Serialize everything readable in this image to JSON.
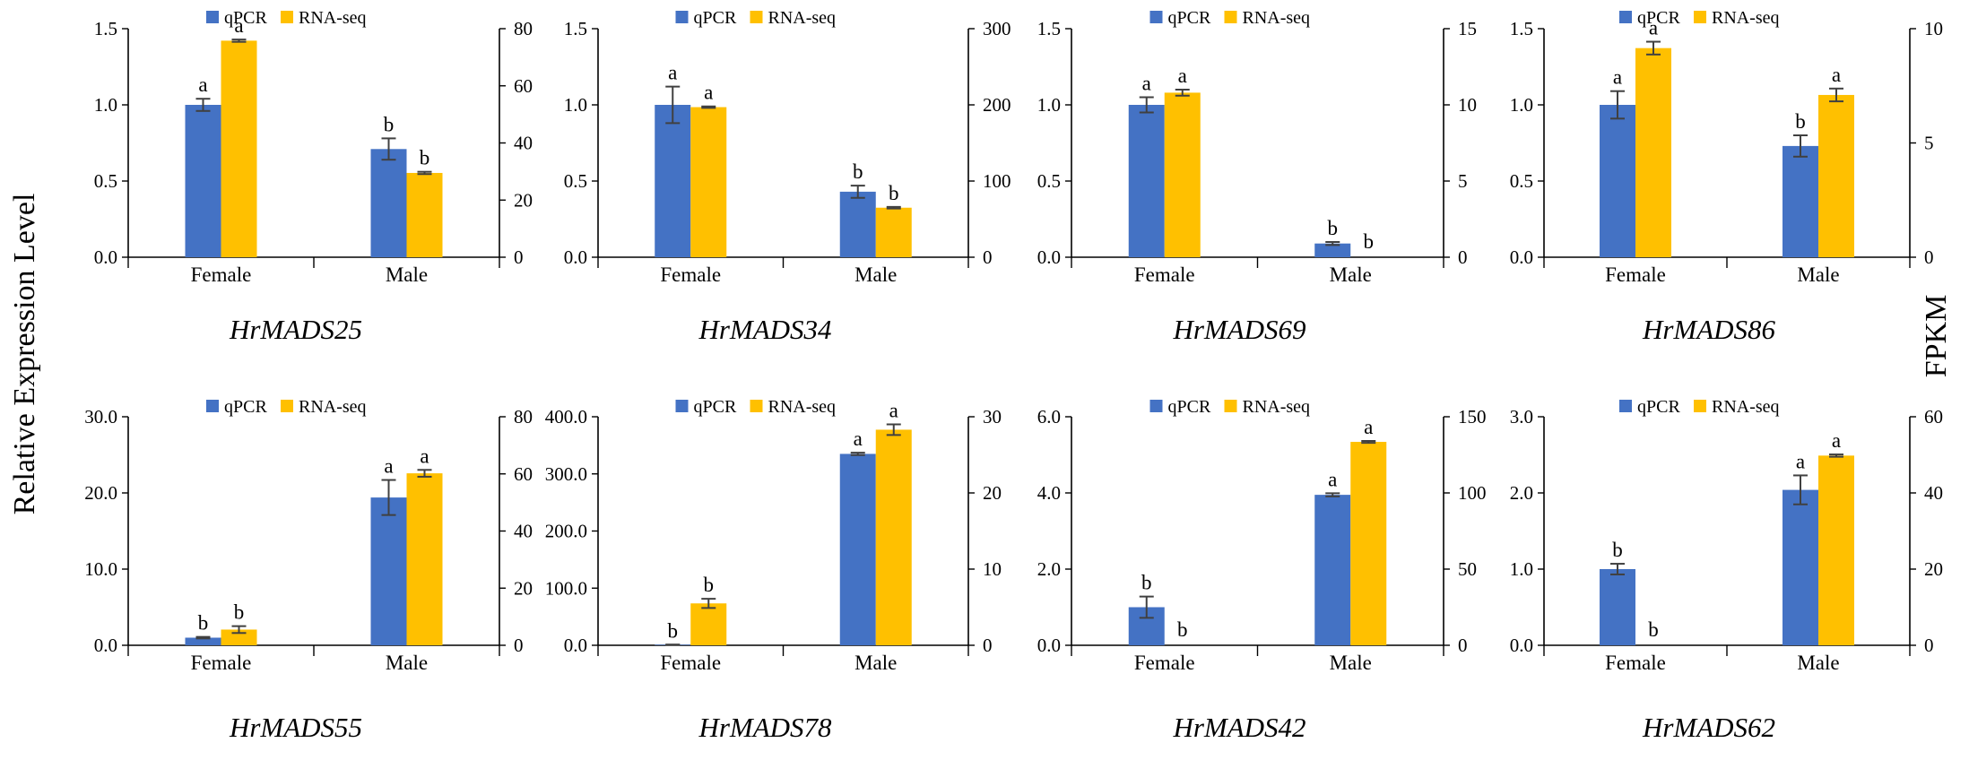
{
  "figure": {
    "left_axis_label": "Relative Expression Level",
    "right_axis_label": "FPKM"
  },
  "colors": {
    "qpcr": "#4472C4",
    "rnaseq": "#FFC000"
  },
  "chart_data": [
    {
      "type": "bar",
      "title": "HrMADS25",
      "categories": [
        "Female",
        "Male"
      ],
      "legend": [
        "qPCR",
        "RNA-seq"
      ],
      "left_axis": {
        "min": 0,
        "max": 1.5,
        "ticks": [
          0,
          0.5,
          1,
          1.5
        ],
        "tick_labels": [
          "0.0",
          "0.5",
          "1.0",
          "1.5"
        ]
      },
      "right_axis": {
        "min": 0,
        "max": 80,
        "ticks": [
          0,
          20,
          40,
          60,
          80
        ],
        "tick_labels": [
          "0",
          "20",
          "40",
          "60",
          "80"
        ]
      },
      "series": [
        {
          "name": "qPCR",
          "axis": "left",
          "values": [
            1.0,
            0.71
          ],
          "errors": [
            0.04,
            0.07
          ],
          "letters": [
            "a",
            "b"
          ]
        },
        {
          "name": "RNA-seq",
          "axis": "right",
          "values": [
            75.8,
            29.5
          ],
          "errors": [
            0.4,
            0.4
          ],
          "letters": [
            "a",
            "b"
          ]
        }
      ]
    },
    {
      "type": "bar",
      "title": "HrMADS34",
      "categories": [
        "Female",
        "Male"
      ],
      "legend": [
        "qPCR",
        "RNA-seq"
      ],
      "left_axis": {
        "min": 0,
        "max": 1.5,
        "ticks": [
          0,
          0.5,
          1,
          1.5
        ],
        "tick_labels": [
          "0.0",
          "0.5",
          "1.0",
          "1.5"
        ]
      },
      "right_axis": {
        "min": 0,
        "max": 300,
        "ticks": [
          0,
          100,
          200,
          300
        ],
        "tick_labels": [
          "0",
          "100",
          "200",
          "300"
        ]
      },
      "series": [
        {
          "name": "qPCR",
          "axis": "left",
          "values": [
            1.0,
            0.43
          ],
          "errors": [
            0.12,
            0.04
          ],
          "letters": [
            "a",
            "b"
          ]
        },
        {
          "name": "RNA-seq",
          "axis": "right",
          "values": [
            197,
            65
          ],
          "errors": [
            1,
            1
          ],
          "letters": [
            "a",
            "b"
          ]
        }
      ]
    },
    {
      "type": "bar",
      "title": "HrMADS69",
      "categories": [
        "Female",
        "Male"
      ],
      "legend": [
        "qPCR",
        "RNA-seq"
      ],
      "left_axis": {
        "min": 0,
        "max": 1.5,
        "ticks": [
          0,
          0.5,
          1,
          1.5
        ],
        "tick_labels": [
          "0.0",
          "0.5",
          "1.0",
          "1.5"
        ]
      },
      "right_axis": {
        "min": 0,
        "max": 15,
        "ticks": [
          0,
          5,
          10,
          15
        ],
        "tick_labels": [
          "0",
          "5",
          "10",
          "15"
        ]
      },
      "series": [
        {
          "name": "qPCR",
          "axis": "left",
          "values": [
            1.0,
            0.09
          ],
          "errors": [
            0.05,
            0.01
          ],
          "letters": [
            "a",
            "b"
          ]
        },
        {
          "name": "RNA-seq",
          "axis": "right",
          "values": [
            10.8,
            0
          ],
          "errors": [
            0.2,
            0
          ],
          "letters": [
            "a",
            "b"
          ]
        }
      ]
    },
    {
      "type": "bar",
      "title": "HrMADS86",
      "categories": [
        "Female",
        "Male"
      ],
      "legend": [
        "qPCR",
        "RNA-seq"
      ],
      "left_axis": {
        "min": 0,
        "max": 1.5,
        "ticks": [
          0,
          0.5,
          1,
          1.5
        ],
        "tick_labels": [
          "0.0",
          "0.5",
          "1.0",
          "1.5"
        ]
      },
      "right_axis": {
        "min": 0,
        "max": 10,
        "ticks": [
          0,
          5,
          10
        ],
        "tick_labels": [
          "0",
          "5",
          "10"
        ]
      },
      "series": [
        {
          "name": "qPCR",
          "axis": "left",
          "values": [
            1.0,
            0.73
          ],
          "errors": [
            0.09,
            0.07
          ],
          "letters": [
            "a",
            "b"
          ]
        },
        {
          "name": "RNA-seq",
          "axis": "right",
          "values": [
            9.15,
            7.1
          ],
          "errors": [
            0.28,
            0.28
          ],
          "letters": [
            "a",
            "a"
          ]
        }
      ]
    },
    {
      "type": "bar",
      "title": "HrMADS55",
      "categories": [
        "Female",
        "Male"
      ],
      "legend": [
        "qPCR",
        "RNA-seq"
      ],
      "left_axis": {
        "min": 0,
        "max": 30,
        "ticks": [
          0,
          10,
          20,
          30
        ],
        "tick_labels": [
          "0.0",
          "10.0",
          "20.0",
          "30.0"
        ]
      },
      "right_axis": {
        "min": 0,
        "max": 80,
        "ticks": [
          0,
          20,
          40,
          60,
          80
        ],
        "tick_labels": [
          "0",
          "20",
          "40",
          "60",
          "80"
        ]
      },
      "series": [
        {
          "name": "qPCR",
          "axis": "left",
          "values": [
            1.0,
            19.4
          ],
          "errors": [
            0.1,
            2.3
          ],
          "letters": [
            "b",
            "a"
          ]
        },
        {
          "name": "RNA-seq",
          "axis": "right",
          "values": [
            5.5,
            60.2
          ],
          "errors": [
            1.2,
            1.2
          ],
          "letters": [
            "b",
            "a"
          ]
        }
      ]
    },
    {
      "type": "bar",
      "title": "HrMADS78",
      "categories": [
        "Female",
        "Male"
      ],
      "legend": [
        "qPCR",
        "RNA-seq"
      ],
      "left_axis": {
        "min": 0,
        "max": 400,
        "ticks": [
          0,
          100,
          200,
          300,
          400
        ],
        "tick_labels": [
          "0.0",
          "100.0",
          "200.0",
          "300.0",
          "400.0"
        ]
      },
      "right_axis": {
        "min": 0,
        "max": 30,
        "ticks": [
          0,
          10,
          20,
          30
        ],
        "tick_labels": [
          "0",
          "10",
          "20",
          "30"
        ]
      },
      "series": [
        {
          "name": "qPCR",
          "axis": "left",
          "values": [
            1.0,
            335
          ],
          "errors": [
            0.1,
            2
          ],
          "letters": [
            "b",
            "a"
          ]
        },
        {
          "name": "RNA-seq",
          "axis": "right",
          "values": [
            5.5,
            28.3
          ],
          "errors": [
            0.6,
            0.7
          ],
          "letters": [
            "b",
            "a"
          ]
        }
      ]
    },
    {
      "type": "bar",
      "title": "HrMADS42",
      "categories": [
        "Female",
        "Male"
      ],
      "legend": [
        "qPCR",
        "RNA-seq"
      ],
      "left_axis": {
        "min": 0,
        "max": 6,
        "ticks": [
          0,
          2,
          4,
          6
        ],
        "tick_labels": [
          "0.0",
          "2.0",
          "4.0",
          "6.0"
        ]
      },
      "right_axis": {
        "min": 0,
        "max": 150,
        "ticks": [
          0,
          50,
          100,
          150
        ],
        "tick_labels": [
          "0",
          "50",
          "100",
          "150"
        ]
      },
      "series": [
        {
          "name": "qPCR",
          "axis": "left",
          "values": [
            1.0,
            3.95
          ],
          "errors": [
            0.28,
            0.04
          ],
          "letters": [
            "b",
            "a"
          ]
        },
        {
          "name": "RNA-seq",
          "axis": "right",
          "values": [
            0,
            133.5
          ],
          "errors": [
            0,
            0.6
          ],
          "letters": [
            "b",
            "a"
          ]
        }
      ]
    },
    {
      "type": "bar",
      "title": "HrMADS62",
      "categories": [
        "Female",
        "Male"
      ],
      "legend": [
        "qPCR",
        "RNA-seq"
      ],
      "left_axis": {
        "min": 0,
        "max": 3,
        "ticks": [
          0,
          1,
          2,
          3
        ],
        "tick_labels": [
          "0.0",
          "1.0",
          "2.0",
          "3.0"
        ]
      },
      "right_axis": {
        "min": 0,
        "max": 60,
        "ticks": [
          0,
          20,
          40,
          60
        ],
        "tick_labels": [
          "0",
          "20",
          "40",
          "60"
        ]
      },
      "series": [
        {
          "name": "qPCR",
          "axis": "left",
          "values": [
            1.0,
            2.04
          ],
          "errors": [
            0.07,
            0.19
          ],
          "letters": [
            "b",
            "a"
          ]
        },
        {
          "name": "RNA-seq",
          "axis": "right",
          "values": [
            0,
            49.8
          ],
          "errors": [
            0,
            0.3
          ],
          "letters": [
            "b",
            "a"
          ]
        }
      ]
    }
  ]
}
